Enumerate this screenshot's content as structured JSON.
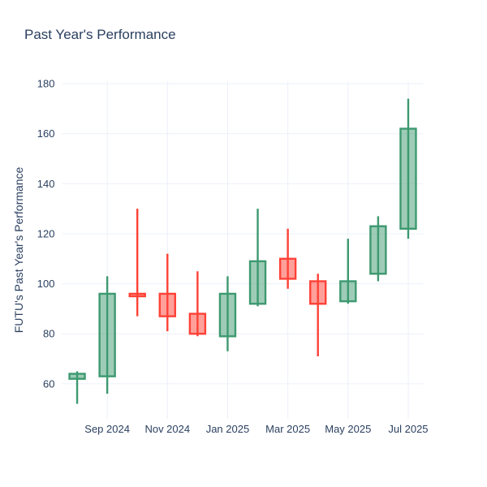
{
  "chart": {
    "title": "Past Year's Performance",
    "yaxis_title": "FUTU's Past Year's Performance"
  },
  "chart_data": {
    "type": "candlestick",
    "title": "Past Year's Performance",
    "ylabel": "FUTU's Past Year's Performance",
    "xlabel": "",
    "x": [
      "Aug 2024",
      "Sep 2024",
      "Oct 2024",
      "Nov 2024",
      "Dec 2024",
      "Jan 2025",
      "Feb 2025",
      "Mar 2025",
      "Apr 2025",
      "May 2025",
      "Jun 2025",
      "Jul 2025"
    ],
    "open": [
      62,
      63,
      96,
      96,
      88,
      79,
      92,
      110,
      101,
      93,
      104,
      122
    ],
    "high": [
      65,
      103,
      130,
      112,
      105,
      103,
      130,
      122,
      104,
      118,
      127,
      174
    ],
    "low": [
      52,
      56,
      87,
      81,
      79,
      73,
      91,
      98,
      71,
      92,
      101,
      118
    ],
    "close": [
      64,
      96,
      95,
      87,
      80,
      96,
      109,
      102,
      92,
      101,
      123,
      162
    ],
    "visible_xticks": [
      "Sep 2024",
      "Nov 2024",
      "Jan 2025",
      "Mar 2025",
      "May 2025",
      "Jul 2025"
    ],
    "yticks": [
      60,
      80,
      100,
      120,
      140,
      160,
      180
    ],
    "ylim": [
      46,
      181
    ],
    "grid": true,
    "legend": "none",
    "colors": {
      "increasing_line": "#3D9970",
      "increasing_fill": "rgba(61,153,112,0.5)",
      "decreasing_line": "#FF4136",
      "decreasing_fill": "rgba(255,65,54,0.5)",
      "grid": "#EBF0F8",
      "text": "#2a3f5f",
      "background": "#ffffff"
    }
  }
}
